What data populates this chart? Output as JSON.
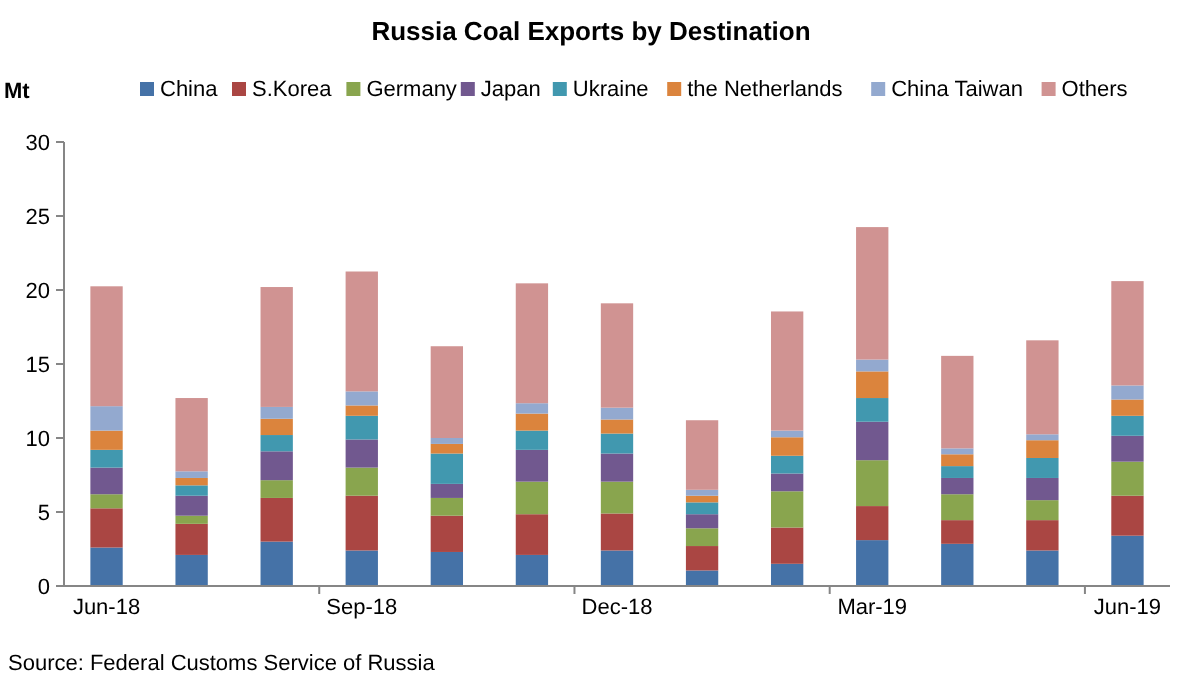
{
  "chart_data": {
    "type": "bar",
    "title": "Russia Coal Exports by Destination",
    "ylabel": "Mt",
    "stacked": true,
    "legend": "top",
    "grid": false,
    "categories": [
      "Jun-18",
      null,
      null,
      "Sep-18",
      null,
      null,
      "Dec-18",
      null,
      null,
      "Mar-19",
      null,
      null,
      "Jun-19"
    ],
    "ylim": [
      0,
      30
    ],
    "yticks": [
      0,
      5,
      10,
      15,
      20,
      25,
      30
    ],
    "series": [
      {
        "name": "China",
        "color": "#4572a7",
        "values": [
          2.6,
          2.1,
          3.0,
          2.4,
          2.3,
          2.1,
          2.4,
          1.05,
          1.5,
          3.1,
          2.85,
          2.4,
          3.4
        ]
      },
      {
        "name": "S.Korea",
        "color": "#aa4643",
        "values": [
          2.65,
          2.1,
          2.95,
          3.7,
          2.45,
          2.75,
          2.5,
          1.65,
          2.45,
          2.3,
          1.6,
          2.05,
          2.7
        ]
      },
      {
        "name": "Germany",
        "color": "#89a54e",
        "values": [
          0.95,
          0.55,
          1.2,
          1.9,
          1.2,
          2.2,
          2.15,
          1.2,
          2.45,
          3.1,
          1.75,
          1.35,
          2.3
        ]
      },
      {
        "name": "Japan",
        "color": "#71588f",
        "values": [
          1.8,
          1.35,
          1.95,
          1.9,
          0.95,
          2.15,
          1.9,
          0.95,
          1.2,
          2.6,
          1.1,
          1.5,
          1.75
        ]
      },
      {
        "name": "Ukraine",
        "color": "#4198af",
        "values": [
          1.2,
          0.7,
          1.1,
          1.6,
          2.05,
          1.3,
          1.35,
          0.8,
          1.2,
          1.6,
          0.8,
          1.35,
          1.35
        ]
      },
      {
        "name": "the Netherlands",
        "color": "#db843d",
        "values": [
          1.3,
          0.5,
          1.1,
          0.7,
          0.65,
          1.15,
          0.95,
          0.45,
          1.25,
          1.8,
          0.8,
          1.2,
          1.1
        ]
      },
      {
        "name": "China Taiwan",
        "color": "#93a9cf",
        "values": [
          1.65,
          0.45,
          0.8,
          0.95,
          0.4,
          0.7,
          0.8,
          0.4,
          0.45,
          0.8,
          0.4,
          0.4,
          0.95
        ]
      },
      {
        "name": "Others",
        "color": "#d09392",
        "values": [
          8.1,
          4.95,
          8.1,
          8.1,
          6.2,
          8.1,
          7.05,
          4.7,
          8.05,
          8.95,
          6.25,
          6.35,
          7.05
        ]
      }
    ],
    "annotations": [
      "Source: Federal Customs Service of Russia"
    ]
  }
}
